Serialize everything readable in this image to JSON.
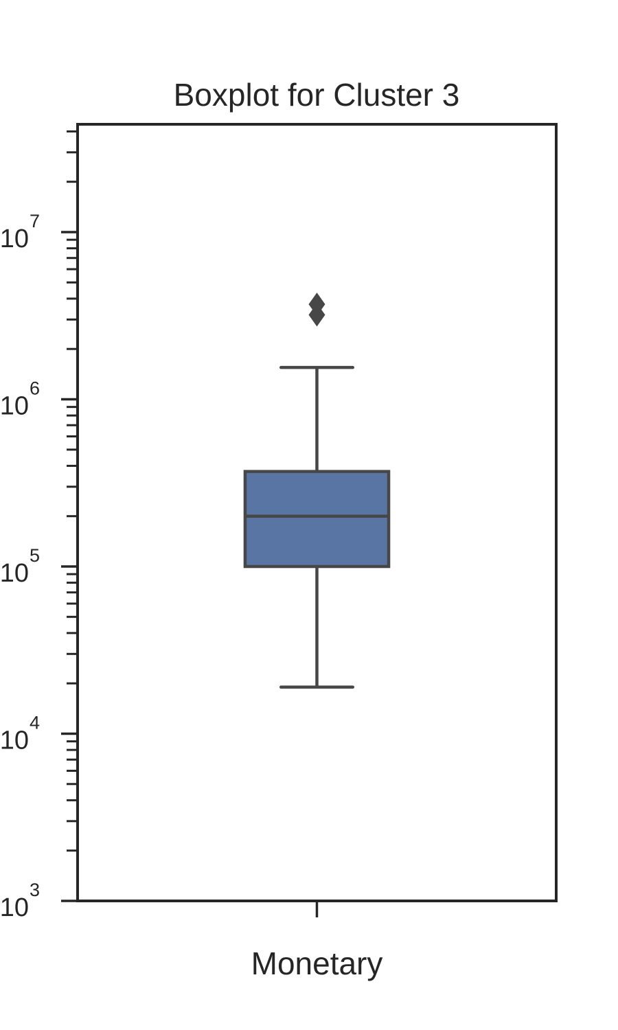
{
  "chart_data": {
    "type": "box",
    "title": "Boxplot for Cluster 3",
    "xlabel": "",
    "ylabel": "",
    "yscale": "log",
    "ylim": [
      1000,
      45000000
    ],
    "yticks": [
      {
        "value": 1000,
        "base": "10",
        "exp": "3"
      },
      {
        "value": 10000,
        "base": "10",
        "exp": "4"
      },
      {
        "value": 100000,
        "base": "10",
        "exp": "5"
      },
      {
        "value": 1000000,
        "base": "10",
        "exp": "6"
      },
      {
        "value": 10000000,
        "base": "10",
        "exp": "7"
      }
    ],
    "categories": [
      "Monetary"
    ],
    "boxes": [
      {
        "category": "Monetary",
        "whisker_low": 19000,
        "q1": 100000,
        "median": 200000,
        "q3": 370000,
        "whisker_high": 1550000,
        "outliers": [
          3200000,
          3700000
        ]
      }
    ],
    "grid": false,
    "legend": "none",
    "colors": {
      "box_fill": "#5975a4",
      "box_edge": "#474747",
      "axis": "#262626",
      "text": "#262626"
    }
  }
}
